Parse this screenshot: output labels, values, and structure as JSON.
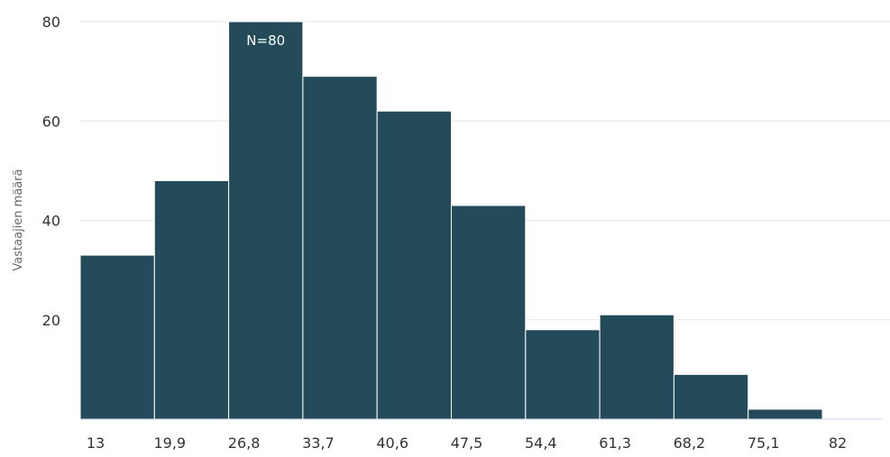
{
  "chart_data": {
    "type": "bar",
    "title": "",
    "xlabel": "",
    "ylabel": "Vastaajien määrä",
    "x_tick_labels": [
      "13",
      "19,9",
      "26,8",
      "33,7",
      "40,6",
      "47,5",
      "54,4",
      "61,3",
      "68,2",
      "75,1",
      "82"
    ],
    "y_tick_labels": [
      "20",
      "40",
      "60",
      "80"
    ],
    "y_ticks": [
      20,
      40,
      60,
      80
    ],
    "ylim": [
      0,
      80
    ],
    "bin_edges": [
      13,
      19.9,
      26.8,
      33.7,
      40.6,
      47.5,
      54.4,
      61.3,
      68.2,
      75.1,
      82
    ],
    "values": [
      33,
      48,
      80,
      69,
      62,
      43,
      18,
      21,
      9,
      2
    ],
    "annotations": [
      {
        "bin_index": 2,
        "text": "N=80"
      }
    ],
    "grid": true,
    "legend": "none",
    "colors": {
      "bar": "#234b5a",
      "grid": "#e6e6e6",
      "baseline": "#ccd6eb"
    }
  }
}
